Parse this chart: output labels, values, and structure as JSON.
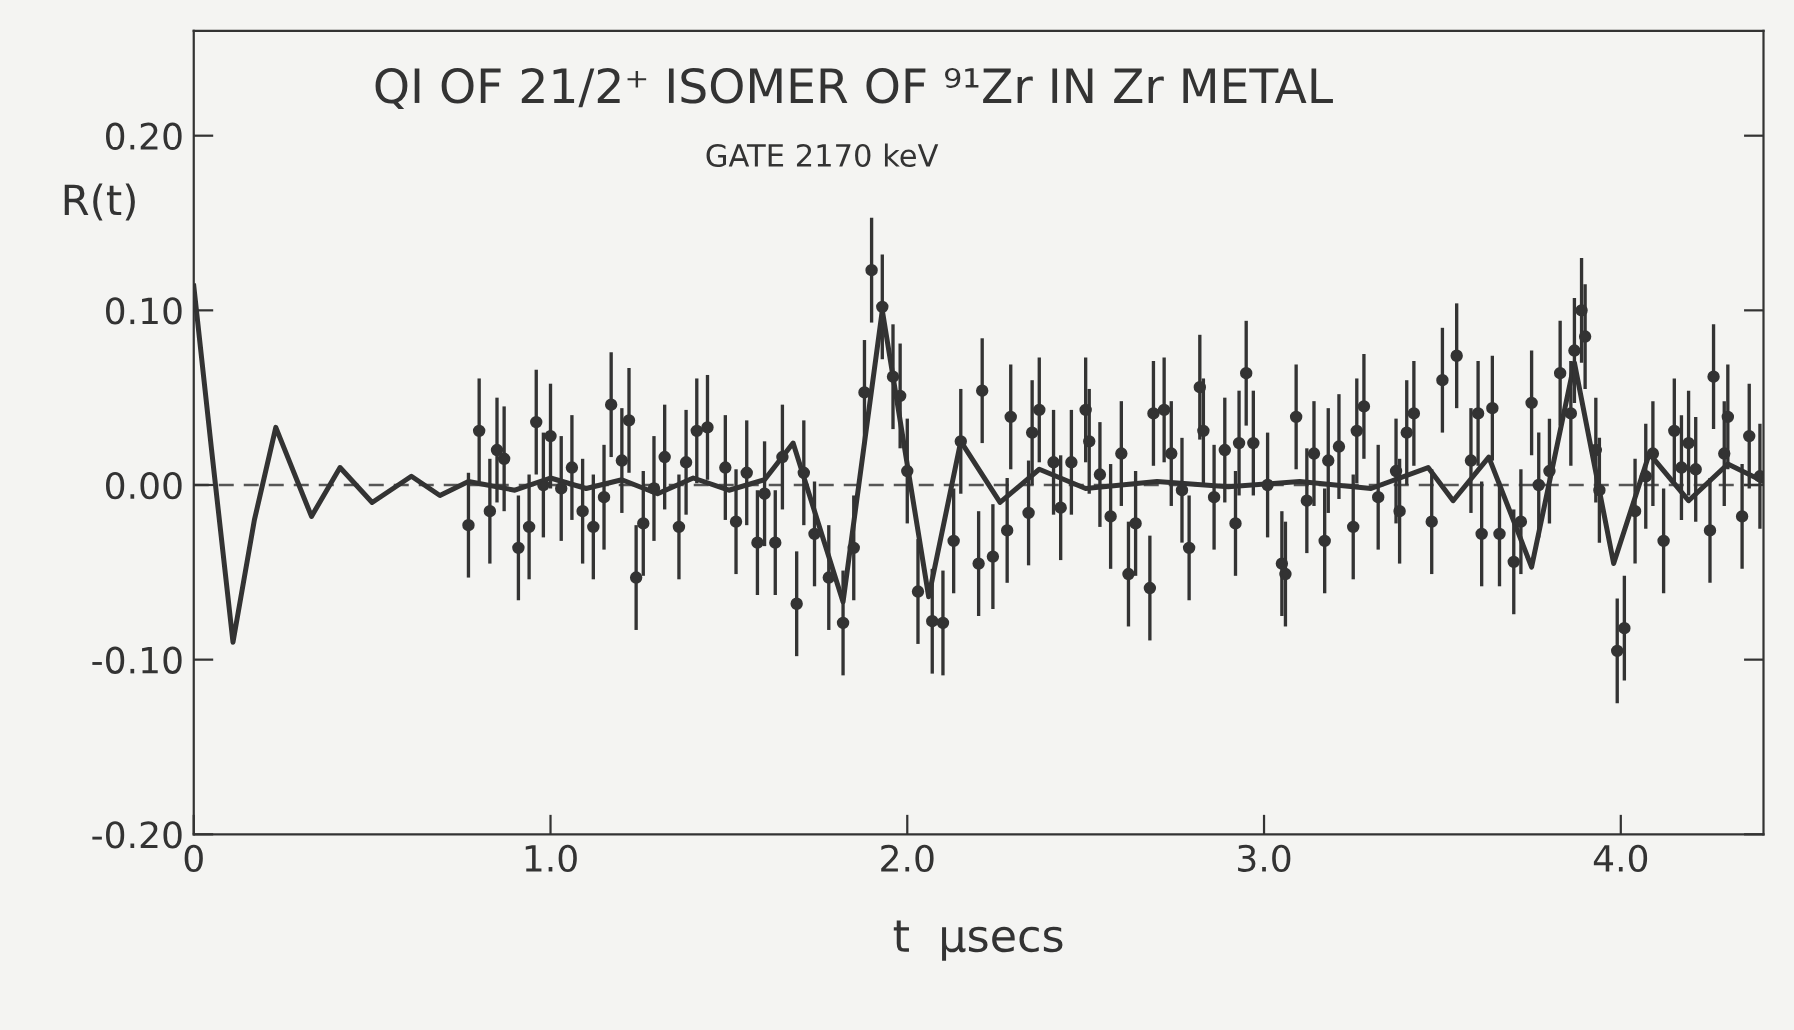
{
  "chart_data": {
    "type": "scatter",
    "title": "QI OF 21/2⁺ ISOMER OF ⁹¹Zr IN Zr METAL",
    "subtitle": "GATE 2170 keV",
    "xlabel": "t  μsecs",
    "ylabel": "R(t)",
    "xlim": [
      0,
      4.4
    ],
    "ylim": [
      -0.2,
      0.26
    ],
    "xticks": [
      {
        "value": 0,
        "label": "0"
      },
      {
        "value": 1,
        "label": "1.0"
      },
      {
        "value": 2,
        "label": "2.0"
      },
      {
        "value": 3,
        "label": "3.0"
      },
      {
        "value": 4,
        "label": "4.0"
      }
    ],
    "yticks": [
      {
        "value": -0.2,
        "label": "-0.20"
      },
      {
        "value": -0.1,
        "label": "-0.10"
      },
      {
        "value": 0,
        "label": "0.00"
      },
      {
        "value": 0.1,
        "label": "0.10"
      },
      {
        "value": 0.2,
        "label": "0.20"
      }
    ],
    "grid": false,
    "ref_lines": [
      {
        "axis": "y",
        "value": 0,
        "color": "#555555",
        "line_style": "dashed"
      }
    ],
    "series": [
      {
        "type": "line",
        "color": "#333333",
        "line_style": "solid",
        "marker": "none",
        "x": [
          0,
          0.05,
          0.11,
          0.17,
          0.23,
          0.33,
          0.41,
          0.5,
          0.61,
          0.69,
          0.77,
          0.9,
          1.0,
          1.1,
          1.2,
          1.3,
          1.4,
          1.5,
          1.6,
          1.68,
          1.82,
          1.93,
          2.06,
          2.15,
          2.26,
          2.37,
          2.5,
          2.7,
          2.9,
          3.1,
          3.3,
          3.46,
          3.53,
          3.63,
          3.75,
          3.87,
          3.98,
          4.08,
          4.19,
          4.3,
          4.4
        ],
        "values": [
          0.114,
          0.02,
          -0.09,
          -0.02,
          0.033,
          -0.018,
          0.01,
          -0.01,
          0.005,
          -0.006,
          0.002,
          -0.003,
          0.004,
          -0.002,
          0.003,
          -0.005,
          0.004,
          -0.003,
          0.003,
          0.024,
          -0.067,
          0.1,
          -0.064,
          0.025,
          -0.01,
          0.009,
          -0.002,
          0.002,
          -0.001,
          0.002,
          -0.002,
          0.01,
          -0.009,
          0.016,
          -0.047,
          0.07,
          -0.045,
          0.018,
          -0.009,
          0.012,
          0.002
        ]
      },
      {
        "color": "#333333",
        "marker": "circle",
        "x": [
          0.77,
          0.8,
          0.83,
          0.85,
          0.87,
          0.91,
          0.94,
          0.96,
          0.98,
          1.0,
          1.03,
          1.06,
          1.09,
          1.12,
          1.15,
          1.17,
          1.2,
          1.22,
          1.24,
          1.26,
          1.29,
          1.32,
          1.36,
          1.38,
          1.41,
          1.44,
          1.49,
          1.52,
          1.55,
          1.58,
          1.6,
          1.63,
          1.65,
          1.69,
          1.71,
          1.74,
          1.78,
          1.82,
          1.85,
          1.88,
          1.9,
          1.93,
          1.96,
          1.98,
          2.0,
          2.03,
          2.07,
          2.1,
          2.13,
          2.15,
          2.2,
          2.21,
          2.24,
          2.28,
          2.29,
          2.34,
          2.35,
          2.37,
          2.41,
          2.43,
          2.46,
          2.5,
          2.51,
          2.54,
          2.57,
          2.6,
          2.62,
          2.64,
          2.68,
          2.69,
          2.72,
          2.74,
          2.77,
          2.79,
          2.82,
          2.83,
          2.86,
          2.89,
          2.92,
          2.93,
          2.95,
          2.97,
          3.01,
          3.05,
          3.06,
          3.09,
          3.12,
          3.14,
          3.17,
          3.18,
          3.21,
          3.25,
          3.26,
          3.28,
          3.32,
          3.37,
          3.38,
          3.4,
          3.42,
          3.47,
          3.5,
          3.54,
          3.58,
          3.6,
          3.61,
          3.64,
          3.66,
          3.7,
          3.72,
          3.75,
          3.77,
          3.8,
          3.83,
          3.86,
          3.87,
          3.89,
          3.9,
          3.93,
          3.94,
          3.99,
          4.01,
          4.04,
          4.07,
          4.09,
          4.12,
          4.15,
          4.17,
          4.19,
          4.21,
          4.25,
          4.26,
          4.29,
          4.3,
          4.34,
          4.36,
          4.39
        ],
        "values": [
          -0.023,
          0.031,
          -0.015,
          0.02,
          0.015,
          -0.036,
          -0.024,
          0.036,
          0.0,
          0.028,
          -0.002,
          0.01,
          -0.015,
          -0.024,
          -0.007,
          0.046,
          0.014,
          0.037,
          -0.053,
          -0.022,
          -0.002,
          0.016,
          -0.024,
          0.013,
          0.031,
          0.033,
          0.01,
          -0.021,
          0.007,
          -0.033,
          -0.005,
          -0.033,
          0.016,
          -0.068,
          0.007,
          -0.028,
          -0.053,
          -0.079,
          -0.036,
          0.053,
          0.123,
          0.102,
          0.062,
          0.051,
          0.008,
          -0.061,
          -0.078,
          -0.079,
          -0.032,
          0.025,
          -0.045,
          0.054,
          -0.041,
          -0.026,
          0.039,
          -0.016,
          0.03,
          0.043,
          0.013,
          -0.013,
          0.013,
          0.043,
          0.025,
          0.006,
          -0.018,
          0.018,
          -0.051,
          -0.022,
          -0.059,
          0.041,
          0.043,
          0.018,
          -0.003,
          -0.036,
          0.056,
          0.031,
          -0.007,
          0.02,
          -0.022,
          0.024,
          0.064,
          0.024,
          0.0,
          -0.045,
          -0.051,
          0.039,
          -0.009,
          0.018,
          -0.032,
          0.014,
          0.022,
          -0.024,
          0.031,
          0.045,
          -0.007,
          0.008,
          -0.015,
          0.03,
          0.041,
          -0.021,
          0.06,
          0.074,
          0.014,
          0.041,
          -0.028,
          0.044,
          -0.028,
          -0.044,
          -0.021,
          0.047,
          0.0,
          0.008,
          0.064,
          0.041,
          0.077,
          0.1,
          0.085,
          0.02,
          -0.003,
          -0.095,
          -0.082,
          -0.015,
          0.005,
          0.018,
          -0.032,
          0.031,
          0.01,
          0.024,
          0.009,
          -0.026,
          0.062,
          0.018,
          0.039,
          -0.018,
          0.028,
          0.005
        ],
        "errors": [
          0.03,
          0.03,
          0.03,
          0.03,
          0.03,
          0.03,
          0.03,
          0.03,
          0.03,
          0.03,
          0.03,
          0.03,
          0.03,
          0.03,
          0.03,
          0.03,
          0.03,
          0.03,
          0.03,
          0.03,
          0.03,
          0.03,
          0.03,
          0.03,
          0.03,
          0.03,
          0.03,
          0.03,
          0.03,
          0.03,
          0.03,
          0.03,
          0.03,
          0.03,
          0.03,
          0.03,
          0.03,
          0.03,
          0.03,
          0.03,
          0.03,
          0.03,
          0.03,
          0.03,
          0.03,
          0.03,
          0.03,
          0.03,
          0.03,
          0.03,
          0.03,
          0.03,
          0.03,
          0.03,
          0.03,
          0.03,
          0.03,
          0.03,
          0.03,
          0.03,
          0.03,
          0.03,
          0.03,
          0.03,
          0.03,
          0.03,
          0.03,
          0.03,
          0.03,
          0.03,
          0.03,
          0.03,
          0.03,
          0.03,
          0.03,
          0.03,
          0.03,
          0.03,
          0.03,
          0.03,
          0.03,
          0.03,
          0.03,
          0.03,
          0.03,
          0.03,
          0.03,
          0.03,
          0.03,
          0.03,
          0.03,
          0.03,
          0.03,
          0.03,
          0.03,
          0.03,
          0.03,
          0.03,
          0.03,
          0.03,
          0.03,
          0.03,
          0.03,
          0.03,
          0.03,
          0.03,
          0.03,
          0.03,
          0.03,
          0.03,
          0.03,
          0.03,
          0.03,
          0.03,
          0.03,
          0.03,
          0.03,
          0.03,
          0.03,
          0.03,
          0.03,
          0.03,
          0.03,
          0.03,
          0.03,
          0.03,
          0.03,
          0.03,
          0.03,
          0.03,
          0.03,
          0.03,
          0.03,
          0.03,
          0.03,
          0.03
        ]
      }
    ]
  }
}
